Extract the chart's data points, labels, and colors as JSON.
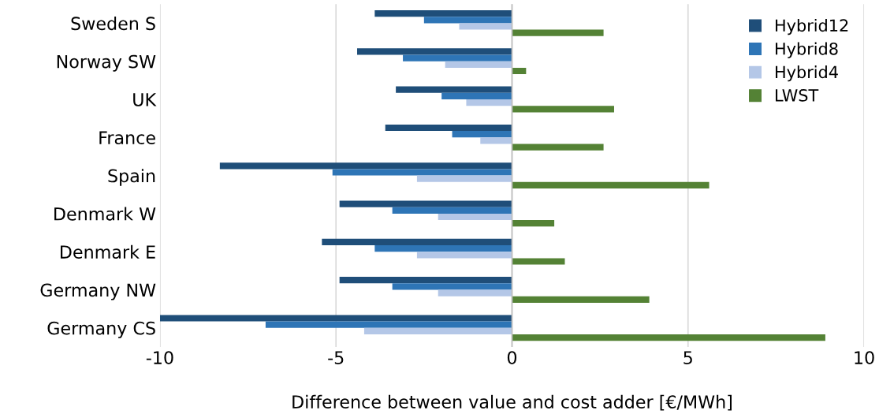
{
  "chart_data": {
    "type": "bar",
    "orientation": "horizontal",
    "xlabel": "Difference between value and cost adder [€/MWh]",
    "categories": [
      "Sweden S",
      "Norway SW",
      "UK",
      "France",
      "Spain",
      "Denmark W",
      "Denmark E",
      "Germany NW",
      "Germany CS"
    ],
    "series": [
      {
        "name": "Hybrid12",
        "color": "#1f4e79",
        "values": [
          -3.9,
          -4.4,
          -3.3,
          -3.6,
          -8.3,
          -4.9,
          -5.4,
          -4.9,
          -10.0
        ]
      },
      {
        "name": "Hybrid8",
        "color": "#2e75b6",
        "values": [
          -2.5,
          -3.1,
          -2.0,
          -1.7,
          -5.1,
          -3.4,
          -3.9,
          -3.4,
          -7.0
        ]
      },
      {
        "name": "Hybrid4",
        "color": "#b4c7e7",
        "values": [
          -1.5,
          -1.9,
          -1.3,
          -0.9,
          -2.7,
          -2.1,
          -2.7,
          -2.1,
          -4.2
        ]
      },
      {
        "name": "LWST",
        "color": "#548235",
        "values": [
          2.6,
          0.4,
          2.9,
          2.6,
          5.6,
          1.2,
          1.5,
          3.9,
          8.9
        ]
      }
    ],
    "xlim": [
      -10,
      10
    ],
    "xticks": [
      -10,
      -5,
      0,
      5,
      10
    ],
    "grid": "x",
    "legend": "top right"
  }
}
